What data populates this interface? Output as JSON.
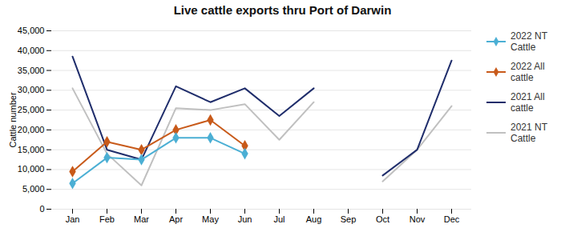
{
  "chart_data": {
    "type": "line",
    "title": "Live cattle exports thru Port of Darwin",
    "ylabel": "Cattle number",
    "categories": [
      "Jan",
      "Feb",
      "Mar",
      "Apr",
      "May",
      "Jun",
      "Jul",
      "Aug",
      "Sep",
      "Oct",
      "Nov",
      "Dec"
    ],
    "series": [
      {
        "name": "2022 NT\nCattle",
        "color": "#4BAFD4",
        "marker": "diamond",
        "values": [
          6500,
          13000,
          12500,
          18000,
          18000,
          14000,
          null,
          null,
          null,
          null,
          null,
          null
        ]
      },
      {
        "name": "2022 All\ncattle",
        "color": "#C85A1A",
        "marker": "diamond",
        "values": [
          9500,
          17000,
          15000,
          20000,
          22500,
          16000,
          null,
          null,
          null,
          null,
          null,
          null
        ]
      },
      {
        "name": "2021 All\ncattle",
        "color": "#1F2D6B",
        "marker": "none",
        "values": [
          38500,
          15000,
          12500,
          31000,
          27000,
          30500,
          23500,
          30500,
          null,
          8500,
          15000,
          37500
        ]
      },
      {
        "name": "2021 NT\nCattle",
        "color": "#C0C0C0",
        "marker": "none",
        "values": [
          30500,
          14000,
          6000,
          25500,
          25000,
          26500,
          17500,
          27000,
          null,
          7000,
          15000,
          26000
        ]
      }
    ],
    "ylim": [
      0,
      45000
    ],
    "yticks": [
      0,
      {
        "value": 5000,
        "label": "5,000"
      },
      {
        "value": 10000,
        "label": "10,000"
      },
      {
        "value": 15000,
        "label": "15,000"
      },
      {
        "value": 20000,
        "label": "20,000"
      },
      {
        "value": 25000,
        "label": "25,000"
      },
      {
        "value": 30000,
        "label": "30,000"
      },
      {
        "value": 35000,
        "label": "35,000"
      },
      {
        "value": 40000,
        "label": "40,000"
      },
      {
        "value": 45000,
        "label": "45,000"
      }
    ],
    "grid": true,
    "legend": "right"
  }
}
